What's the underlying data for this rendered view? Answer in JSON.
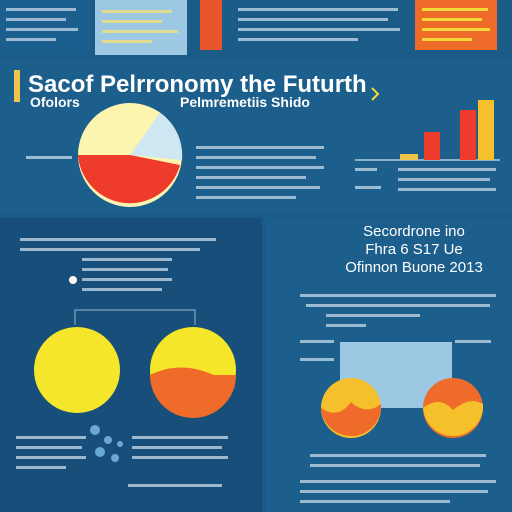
{
  "top_section": {
    "title": "Sacof Pelrronomy the Futurth",
    "subtitle_left": "Ofolors",
    "subtitle_right": "Pelmremetiis Shido"
  },
  "bottom_right": {
    "title_lines": [
      "Secordrone ino",
      "Fhra 6 S17 Ue",
      "Ofinnon Buone 2013"
    ]
  }
}
